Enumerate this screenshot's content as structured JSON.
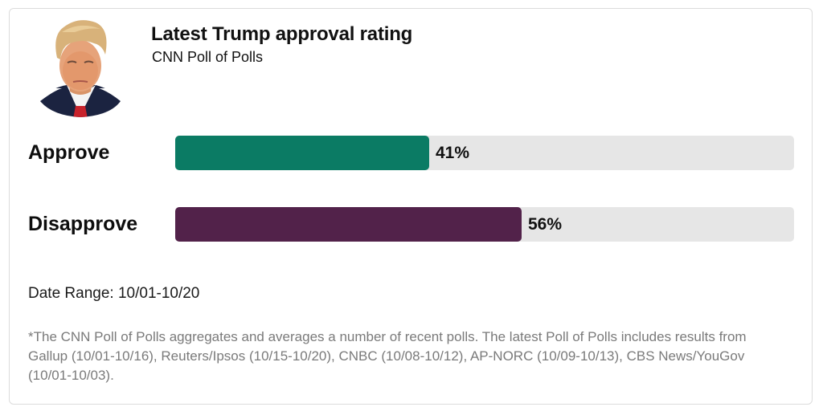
{
  "header": {
    "title": "Latest Trump approval rating",
    "subtitle": "CNN Poll of Polls",
    "portrait": "donald-trump-portrait"
  },
  "chart_data": {
    "type": "bar",
    "orientation": "horizontal",
    "title": "Latest Trump approval rating",
    "subtitle": "CNN Poll of Polls",
    "categories": [
      "Approve",
      "Disapprove"
    ],
    "values": [
      41,
      56
    ],
    "value_labels": [
      "41%",
      "56%"
    ],
    "unit": "%",
    "xlim": [
      0,
      100
    ],
    "colors": [
      "#0b7b64",
      "#52224a"
    ],
    "track_color": "#e6e6e6",
    "grid": false,
    "legend": "none"
  },
  "rows": [
    {
      "label": "Approve",
      "value": 41,
      "value_label": "41%",
      "color": "#0b7b64"
    },
    {
      "label": "Disapprove",
      "value": 56,
      "value_label": "56%",
      "color": "#52224a"
    }
  ],
  "footer": {
    "date_range": "Date Range: 10/01-10/20",
    "footnote": "*The CNN Poll of Polls aggregates and averages a number of recent polls. The latest Poll of Polls includes results from Gallup (10/01-10/16), Reuters/Ipsos (10/15-10/20), CNBC (10/08-10/12), AP-NORC (10/09-10/13), CBS News/YouGov (10/01-10/03)."
  }
}
